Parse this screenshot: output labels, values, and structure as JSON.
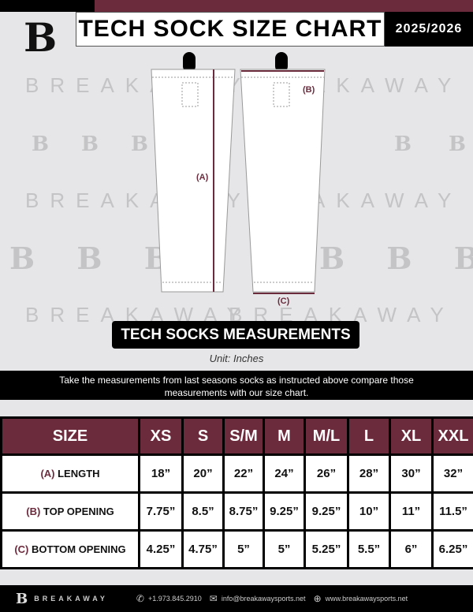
{
  "header": {
    "title": "TECH SOCK SIZE CHART",
    "season": "2025/2026",
    "logo": "B"
  },
  "watermark": {
    "text": "BREAKAWAY"
  },
  "diagram": {
    "label_a": "(A)",
    "label_b": "(B)",
    "label_c": "(C)"
  },
  "measurements": {
    "title": "TECH SOCKS MEASUREMENTS",
    "unit": "Unit: Inches",
    "instructions": "Take the measurements from last seasons socks as instructed above compare those measurements  with our size chart."
  },
  "table": {
    "header": "SIZE",
    "sizes": [
      "XS",
      "S",
      "S/M",
      "M",
      "M/L",
      "L",
      "XL",
      "XXL"
    ],
    "rows": [
      {
        "code": "(A)",
        "label": "LENGTH",
        "values": [
          "18”",
          "20”",
          "22”",
          "24”",
          "26”",
          "28”",
          "30”",
          "32”"
        ]
      },
      {
        "code": "(B)",
        "label": "TOP OPENING",
        "values": [
          "7.75”",
          "8.5”",
          "8.75”",
          "9.25”",
          "9.25”",
          "10”",
          "11”",
          "11.5”"
        ]
      },
      {
        "code": "(C)",
        "label": "BOTTOM OPENING",
        "values": [
          "4.25”",
          "4.75”",
          "5”",
          "5”",
          "5.25”",
          "5.5”",
          "6”",
          "6.25”"
        ]
      }
    ]
  },
  "footer": {
    "brand": "BREAKAWAY",
    "phone": "+1.973.845.2910",
    "email": "info@breakawaysports.net",
    "website": "www.breakawaysports.net"
  },
  "colors": {
    "maroon": "#6c2b3d",
    "black": "#000000",
    "background": "#e6e6e8"
  }
}
